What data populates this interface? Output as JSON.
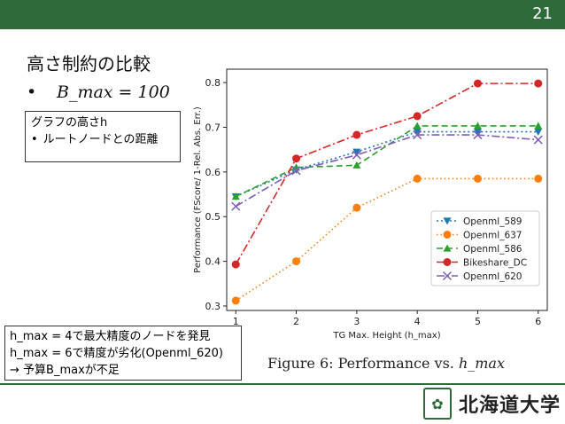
{
  "slide": {
    "number": "21",
    "title": "高さ制約の比較",
    "bullet": "B_max = 100"
  },
  "note_box": {
    "heading": "グラフの高さh",
    "items": [
      "ルートノードとの距離"
    ]
  },
  "bottom_box": {
    "line1": "h_max = 4で最大精度のノードを発見",
    "line2": "h_max = 6で精度が劣化(Openml_620)",
    "line3": "→  予算B_maxが不足"
  },
  "caption": {
    "prefix": "Figure 6: Performance vs. ",
    "var": "h_max"
  },
  "logo": {
    "text": "北海道大学"
  },
  "colors": {
    "header": "#2f6b3a"
  },
  "chart_data": {
    "type": "line",
    "xlabel": "TG Max. Height (h_max)",
    "ylabel": "Performance (FScore/ 1-Rel. Abs. Err.)",
    "x": [
      1,
      2,
      3,
      4,
      5,
      6
    ],
    "xlim": [
      0.85,
      6.15
    ],
    "ylim": [
      0.29,
      0.83
    ],
    "yticks": [
      0.3,
      0.4,
      0.5,
      0.6,
      0.7,
      0.8
    ],
    "legend_position": "lower-right",
    "series": [
      {
        "name": "Openml_589",
        "color": "#1f77b4",
        "dash": "2,3",
        "marker": "triangle-down",
        "values": [
          0.545,
          0.605,
          0.645,
          0.69,
          0.69,
          0.69
        ]
      },
      {
        "name": "Openml_637",
        "color": "#ff7f0e",
        "dash": "1.5,3",
        "marker": "circle",
        "values": [
          0.312,
          0.4,
          0.52,
          0.585,
          0.585,
          0.585
        ]
      },
      {
        "name": "Openml_586",
        "color": "#2ca02c",
        "dash": "7,4",
        "marker": "triangle-up",
        "values": [
          0.545,
          0.61,
          0.615,
          0.703,
          0.703,
          0.703
        ]
      },
      {
        "name": "Bikeshare_DC",
        "color": "#d62728",
        "dash": "9,3,2,3",
        "marker": "circle",
        "values": [
          0.393,
          0.63,
          0.683,
          0.725,
          0.798,
          0.798
        ]
      },
      {
        "name": "Openml_620",
        "color": "#7f5fb8",
        "dash": "9,3,2,3",
        "marker": "x",
        "values": [
          0.523,
          0.603,
          0.638,
          0.683,
          0.683,
          0.672
        ]
      }
    ]
  }
}
